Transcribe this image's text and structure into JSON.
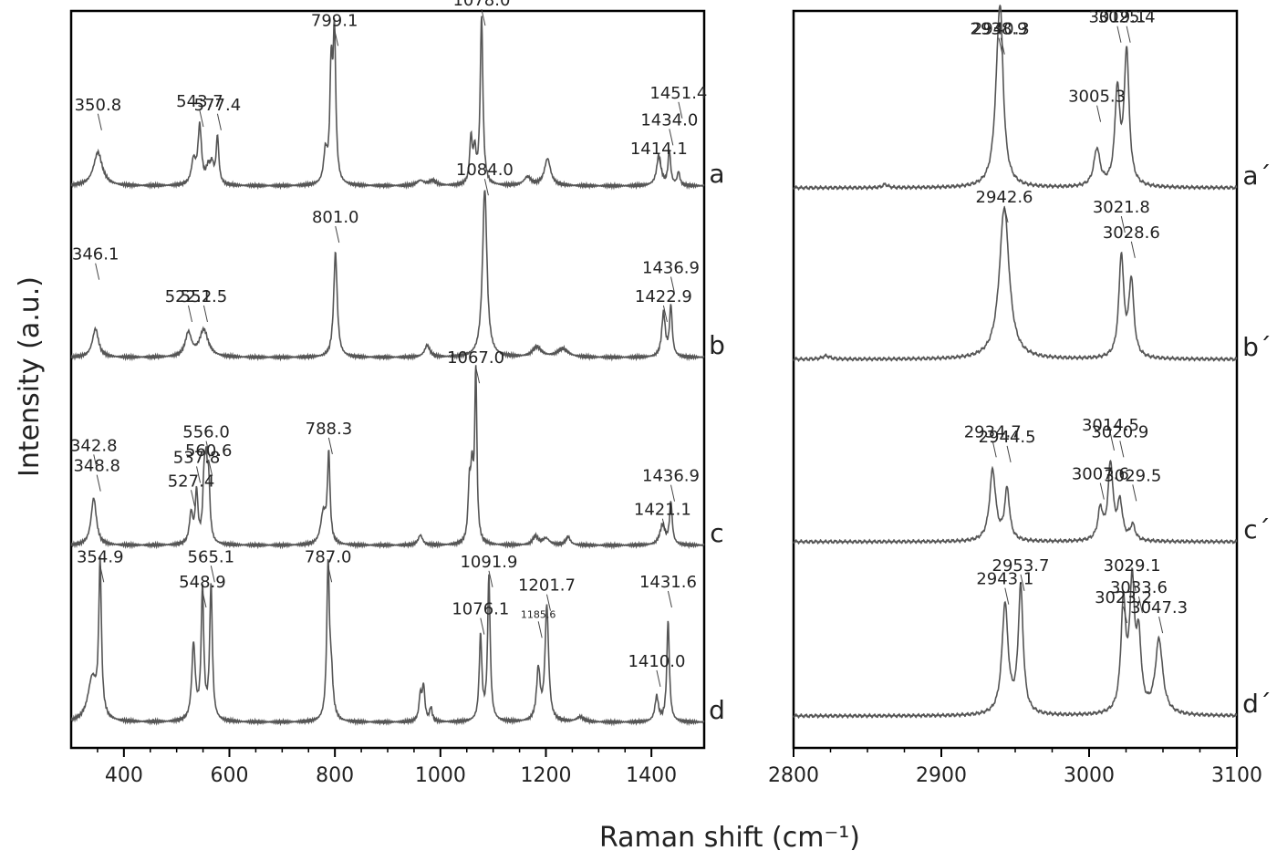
{
  "chart_data": {
    "type": "line",
    "xlabel": "Raman shift (cm⁻¹)",
    "ylabel": "Intensity (a.u.)",
    "line_color": "#555555",
    "frame_color": "#000000",
    "panels": [
      {
        "xlim": [
          300,
          1500
        ],
        "xticks": [
          400,
          600,
          800,
          1000,
          1200,
          1400
        ],
        "xtick_labels": [
          "400",
          "600",
          "800",
          "1000",
          "1200",
          "1400"
        ],
        "traces": [
          {
            "label": "a",
            "peaks": [
              [
                350.8,
                0.2,
                10
              ],
              [
                532,
                0.14,
                5
              ],
              [
                543.7,
                0.34,
                4
              ],
              [
                560,
                0.09,
                5
              ],
              [
                567,
                0.1,
                4
              ],
              [
                577.4,
                0.28,
                3
              ],
              [
                782,
                0.18,
                4
              ],
              [
                793,
                0.65,
                3
              ],
              [
                799.1,
                0.86,
                3
              ],
              [
                962,
                0.03,
                8
              ],
              [
                985,
                0.03,
                8
              ],
              [
                1058,
                0.27,
                3
              ],
              [
                1065,
                0.18,
                3
              ],
              [
                1078.0,
                1.0,
                3
              ],
              [
                1165,
                0.05,
                8
              ],
              [
                1203,
                0.16,
                7
              ],
              [
                1414.1,
                0.18,
                5
              ],
              [
                1434.0,
                0.2,
                3
              ],
              [
                1451.4,
                0.08,
                3
              ]
            ],
            "annotations": [
              {
                "text": "350.8",
                "x": 350.8,
                "h": 0.45
              },
              {
                "text": "543.7",
                "x": 543.7,
                "h": 0.47
              },
              {
                "text": "577.4",
                "x": 577.4,
                "h": 0.45
              },
              {
                "text": "799.1",
                "x": 799.1,
                "h": 0.95
              },
              {
                "text": "1078.0",
                "x": 1078.0,
                "h": 1.07
              },
              {
                "text": "1414.1",
                "x": 1414.1,
                "h": 0.19
              },
              {
                "text": "1434.0",
                "x": 1434.0,
                "h": 0.36
              },
              {
                "text": "1451.4",
                "x": 1451.4,
                "h": 0.52
              }
            ]
          },
          {
            "label": "b",
            "peaks": [
              [
                346.1,
                0.17,
                7
              ],
              [
                522.2,
                0.14,
                7
              ],
              [
                551.5,
                0.16,
                10
              ],
              [
                801.0,
                0.62,
                4
              ],
              [
                975,
                0.07,
                6
              ],
              [
                1084.0,
                1.0,
                5
              ],
              [
                1183,
                0.06,
                10
              ],
              [
                1232,
                0.05,
                12
              ],
              [
                1422.9,
                0.26,
                4
              ],
              [
                1436.9,
                0.3,
                3
              ]
            ],
            "annotations": [
              {
                "text": "346.1",
                "x": 346.1,
                "h": 0.58
              },
              {
                "text": "522.2",
                "x": 522.2,
                "h": 0.33
              },
              {
                "text": "551.5",
                "x": 551.5,
                "h": 0.33
              },
              {
                "text": "801.0",
                "x": 801.0,
                "h": 0.8
              },
              {
                "text": "1084.0",
                "x": 1084.0,
                "h": 1.08
              },
              {
                "text": "1422.9",
                "x": 1422.9,
                "h": 0.33
              },
              {
                "text": "1436.9",
                "x": 1436.9,
                "h": 0.5
              }
            ]
          },
          {
            "label": "c",
            "peaks": [
              [
                342.8,
                0.28,
                6
              ],
              [
                527.4,
                0.18,
                4
              ],
              [
                537.8,
                0.3,
                3
              ],
              [
                552,
                0.32,
                3
              ],
              [
                556.0,
                0.36,
                3
              ],
              [
                560.6,
                0.32,
                3
              ],
              [
                778,
                0.18,
                6
              ],
              [
                788.3,
                0.52,
                3
              ],
              [
                962,
                0.06,
                5
              ],
              [
                1055,
                0.31,
                3
              ],
              [
                1060,
                0.37,
                3
              ],
              [
                1067.0,
                1.0,
                2.5
              ],
              [
                1180,
                0.05,
                6
              ],
              [
                1200,
                0.04,
                8
              ],
              [
                1242,
                0.05,
                5
              ],
              [
                1421.1,
                0.12,
                6
              ],
              [
                1436.9,
                0.25,
                3
              ]
            ],
            "annotations": [
              {
                "text": "342.8",
                "x": 342.8,
                "h": 0.56
              },
              {
                "text": "348.8",
                "x": 348.8,
                "h": 0.44
              },
              {
                "text": "527.4",
                "x": 527.4,
                "h": 0.35
              },
              {
                "text": "537.8",
                "x": 537.8,
                "h": 0.49
              },
              {
                "text": "556.0",
                "x": 556.0,
                "h": 0.64
              },
              {
                "text": "560.6",
                "x": 560.6,
                "h": 0.53
              },
              {
                "text": "788.3",
                "x": 788.3,
                "h": 0.66
              },
              {
                "text": "1067.0",
                "x": 1067.0,
                "h": 1.08
              },
              {
                "text": "1421.1",
                "x": 1421.1,
                "h": 0.18
              },
              {
                "text": "1436.9",
                "x": 1436.9,
                "h": 0.38
              }
            ]
          },
          {
            "label": "d",
            "peaks": [
              [
                340,
                0.25,
                10
              ],
              [
                354.9,
                0.9,
                3
              ],
              [
                532,
                0.45,
                4
              ],
              [
                548.9,
                0.78,
                3
              ],
              [
                565.1,
                0.8,
                3
              ],
              [
                787.0,
                0.9,
                3
              ],
              [
                793,
                0.25,
                4
              ],
              [
                962,
                0.15,
                3
              ],
              [
                968,
                0.2,
                3
              ],
              [
                982,
                0.08,
                3
              ],
              [
                1076.1,
                0.5,
                3
              ],
              [
                1091.9,
                0.85,
                3
              ],
              [
                1185.6,
                0.3,
                4
              ],
              [
                1201.7,
                0.68,
                4
              ],
              [
                1265,
                0.03,
                8
              ],
              [
                1410.0,
                0.15,
                4
              ],
              [
                1431.6,
                0.6,
                3
              ]
            ],
            "annotations": [
              {
                "text": "354.9",
                "x": 354.9,
                "h": 0.95
              },
              {
                "text": "548.9",
                "x": 548.9,
                "h": 0.8
              },
              {
                "text": "565.1",
                "x": 565.1,
                "h": 0.95
              },
              {
                "text": "787.0",
                "x": 787.0,
                "h": 0.95
              },
              {
                "text": "1076.1",
                "x": 1076.1,
                "h": 0.64
              },
              {
                "text": "1091.9",
                "x": 1091.9,
                "h": 0.92
              },
              {
                "text": "1185.6",
                "x": 1185.6,
                "h": 0.62,
                "small": true
              },
              {
                "text": "1201.7",
                "x": 1201.7,
                "h": 0.78
              },
              {
                "text": "1410.0",
                "x": 1410.0,
                "h": 0.33
              },
              {
                "text": "1431.6",
                "x": 1431.6,
                "h": 0.8
              }
            ]
          }
        ]
      },
      {
        "xlim": [
          2800,
          3100
        ],
        "xticks": [
          2800,
          2900,
          3000,
          3100
        ],
        "xtick_labels": [
          "2800",
          "2900",
          "3000",
          "3100"
        ],
        "traces": [
          {
            "label": "a´",
            "peaks": [
              [
                2862,
                0.02,
                2
              ],
              [
                2938.9,
                0.72,
                3
              ],
              [
                2940.3,
                0.45,
                2
              ],
              [
                3005.3,
                0.22,
                2.5
              ],
              [
                3019.1,
                0.55,
                2
              ],
              [
                3025.4,
                0.79,
                2
              ]
            ],
            "annotations": [
              {
                "text": "2938.9",
                "x": 2938.9,
                "h": 0.91
              },
              {
                "text": "2940.3",
                "x": 2940.3,
                "h": 0.91
              },
              {
                "text": "3005.3",
                "x": 3005.3,
                "h": 0.51
              },
              {
                "text": "3019.1",
                "x": 3019.1,
                "h": 0.98
              },
              {
                "text": "3025.4",
                "x": 3025.4,
                "h": 0.98
              }
            ]
          },
          {
            "label": "b´",
            "peaks": [
              [
                2822,
                0.02,
                3
              ],
              [
                2942.6,
                0.9,
                4
              ],
              [
                3021.8,
                0.6,
                2
              ],
              [
                3028.6,
                0.45,
                2
              ]
            ],
            "annotations": [
              {
                "text": "2942.6",
                "x": 2942.6,
                "h": 0.93
              },
              {
                "text": "3021.8",
                "x": 3021.8,
                "h": 0.87
              },
              {
                "text": "3028.6",
                "x": 3028.6,
                "h": 0.72
              }
            ]
          },
          {
            "label": "c´",
            "peaks": [
              [
                2934.7,
                0.42,
                2.5
              ],
              [
                2944.5,
                0.3,
                2
              ],
              [
                3007.6,
                0.18,
                2
              ],
              [
                3014.5,
                0.45,
                2
              ],
              [
                3020.9,
                0.22,
                2
              ],
              [
                3029.5,
                0.09,
                2
              ]
            ],
            "annotations": [
              {
                "text": "2934.7",
                "x": 2934.7,
                "h": 0.62
              },
              {
                "text": "2944.5",
                "x": 2944.5,
                "h": 0.59
              },
              {
                "text": "3007.6",
                "x": 3007.6,
                "h": 0.37
              },
              {
                "text": "3014.5",
                "x": 3014.5,
                "h": 0.66
              },
              {
                "text": "3020.9",
                "x": 3020.9,
                "h": 0.62
              },
              {
                "text": "3029.5",
                "x": 3029.5,
                "h": 0.36
              }
            ]
          },
          {
            "label": "d´",
            "peaks": [
              [
                2943.1,
                0.65,
                2.5
              ],
              [
                2953.7,
                0.75,
                2
              ],
              [
                3023.2,
                0.63,
                2
              ],
              [
                3029.1,
                0.73,
                2
              ],
              [
                3033.6,
                0.4,
                2
              ],
              [
                3047.3,
                0.44,
                3
              ]
            ],
            "annotations": [
              {
                "text": "2943.1",
                "x": 2943.1,
                "h": 0.78
              },
              {
                "text": "2953.7",
                "x": 2953.7,
                "h": 0.86
              },
              {
                "text": "3023.2",
                "x": 3023.2,
                "h": 0.67
              },
              {
                "text": "3029.1",
                "x": 3029.1,
                "h": 0.86
              },
              {
                "text": "3033.6",
                "x": 3033.6,
                "h": 0.73
              },
              {
                "text": "3047.3",
                "x": 3047.3,
                "h": 0.61
              }
            ]
          }
        ]
      }
    ]
  }
}
